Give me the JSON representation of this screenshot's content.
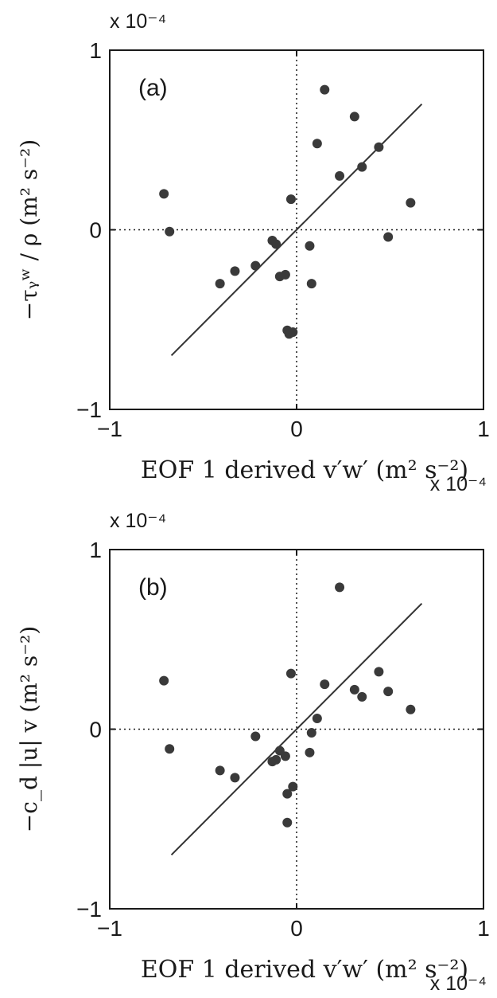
{
  "chart_data": [
    {
      "type": "scatter",
      "panel_label": "(a)",
      "xlabel": "EOF 1 derived v′w′ (m² s⁻²)",
      "ylabel": "−τᵧʷ / ρ (m² s⁻²)",
      "xlim": [
        -1,
        1
      ],
      "ylim": [
        -1,
        1
      ],
      "x_ticks": [
        "−1",
        "0",
        "1"
      ],
      "y_ticks": [
        "1",
        "0",
        "−1"
      ],
      "x_multiplier": "x 10⁻⁴",
      "y_multiplier": "x 10⁻⁴",
      "grid": false,
      "zero_lines": true,
      "points": [
        {
          "x": -0.71,
          "y": 0.2
        },
        {
          "x": -0.68,
          "y": -0.01
        },
        {
          "x": -0.41,
          "y": -0.3
        },
        {
          "x": -0.33,
          "y": -0.23
        },
        {
          "x": -0.22,
          "y": -0.2
        },
        {
          "x": -0.13,
          "y": -0.06
        },
        {
          "x": -0.11,
          "y": -0.08
        },
        {
          "x": -0.09,
          "y": -0.26
        },
        {
          "x": -0.06,
          "y": -0.25
        },
        {
          "x": -0.05,
          "y": -0.56
        },
        {
          "x": -0.04,
          "y": -0.58
        },
        {
          "x": -0.02,
          "y": -0.57
        },
        {
          "x": -0.03,
          "y": 0.17
        },
        {
          "x": 0.07,
          "y": -0.09
        },
        {
          "x": 0.08,
          "y": -0.3
        },
        {
          "x": 0.11,
          "y": 0.48
        },
        {
          "x": 0.15,
          "y": 0.78
        },
        {
          "x": 0.23,
          "y": 0.3
        },
        {
          "x": 0.31,
          "y": 0.63
        },
        {
          "x": 0.35,
          "y": 0.35
        },
        {
          "x": 0.44,
          "y": 0.46
        },
        {
          "x": 0.49,
          "y": -0.04
        },
        {
          "x": 0.61,
          "y": 0.15
        }
      ],
      "fit_line": {
        "x": [
          -0.67,
          0.67
        ],
        "y": [
          -0.7,
          0.7
        ]
      }
    },
    {
      "type": "scatter",
      "panel_label": "(b)",
      "xlabel": "EOF 1 derived v′w′ (m² s⁻²)",
      "ylabel": "−c_d |u| v (m² s⁻²)",
      "xlim": [
        -1,
        1
      ],
      "ylim": [
        -1,
        1
      ],
      "x_ticks": [
        "−1",
        "0",
        "1"
      ],
      "y_ticks": [
        "1",
        "0",
        "−1"
      ],
      "x_multiplier": "x 10⁻⁴",
      "y_multiplier": "x 10⁻⁴",
      "grid": false,
      "zero_lines": true,
      "points": [
        {
          "x": -0.71,
          "y": 0.27
        },
        {
          "x": -0.68,
          "y": -0.11
        },
        {
          "x": -0.41,
          "y": -0.23
        },
        {
          "x": -0.33,
          "y": -0.27
        },
        {
          "x": -0.22,
          "y": -0.04
        },
        {
          "x": -0.13,
          "y": -0.18
        },
        {
          "x": -0.11,
          "y": -0.17
        },
        {
          "x": -0.09,
          "y": -0.12
        },
        {
          "x": -0.06,
          "y": -0.15
        },
        {
          "x": -0.05,
          "y": -0.36
        },
        {
          "x": -0.05,
          "y": -0.52
        },
        {
          "x": -0.02,
          "y": -0.32
        },
        {
          "x": -0.03,
          "y": 0.31
        },
        {
          "x": 0.07,
          "y": -0.13
        },
        {
          "x": 0.08,
          "y": -0.02
        },
        {
          "x": 0.11,
          "y": 0.06
        },
        {
          "x": 0.15,
          "y": 0.25
        },
        {
          "x": 0.23,
          "y": 0.79
        },
        {
          "x": 0.31,
          "y": 0.22
        },
        {
          "x": 0.35,
          "y": 0.18
        },
        {
          "x": 0.44,
          "y": 0.32
        },
        {
          "x": 0.49,
          "y": 0.21
        },
        {
          "x": 0.61,
          "y": 0.11
        }
      ],
      "fit_line": {
        "x": [
          -0.67,
          0.67
        ],
        "y": [
          -0.7,
          0.7
        ]
      }
    }
  ]
}
